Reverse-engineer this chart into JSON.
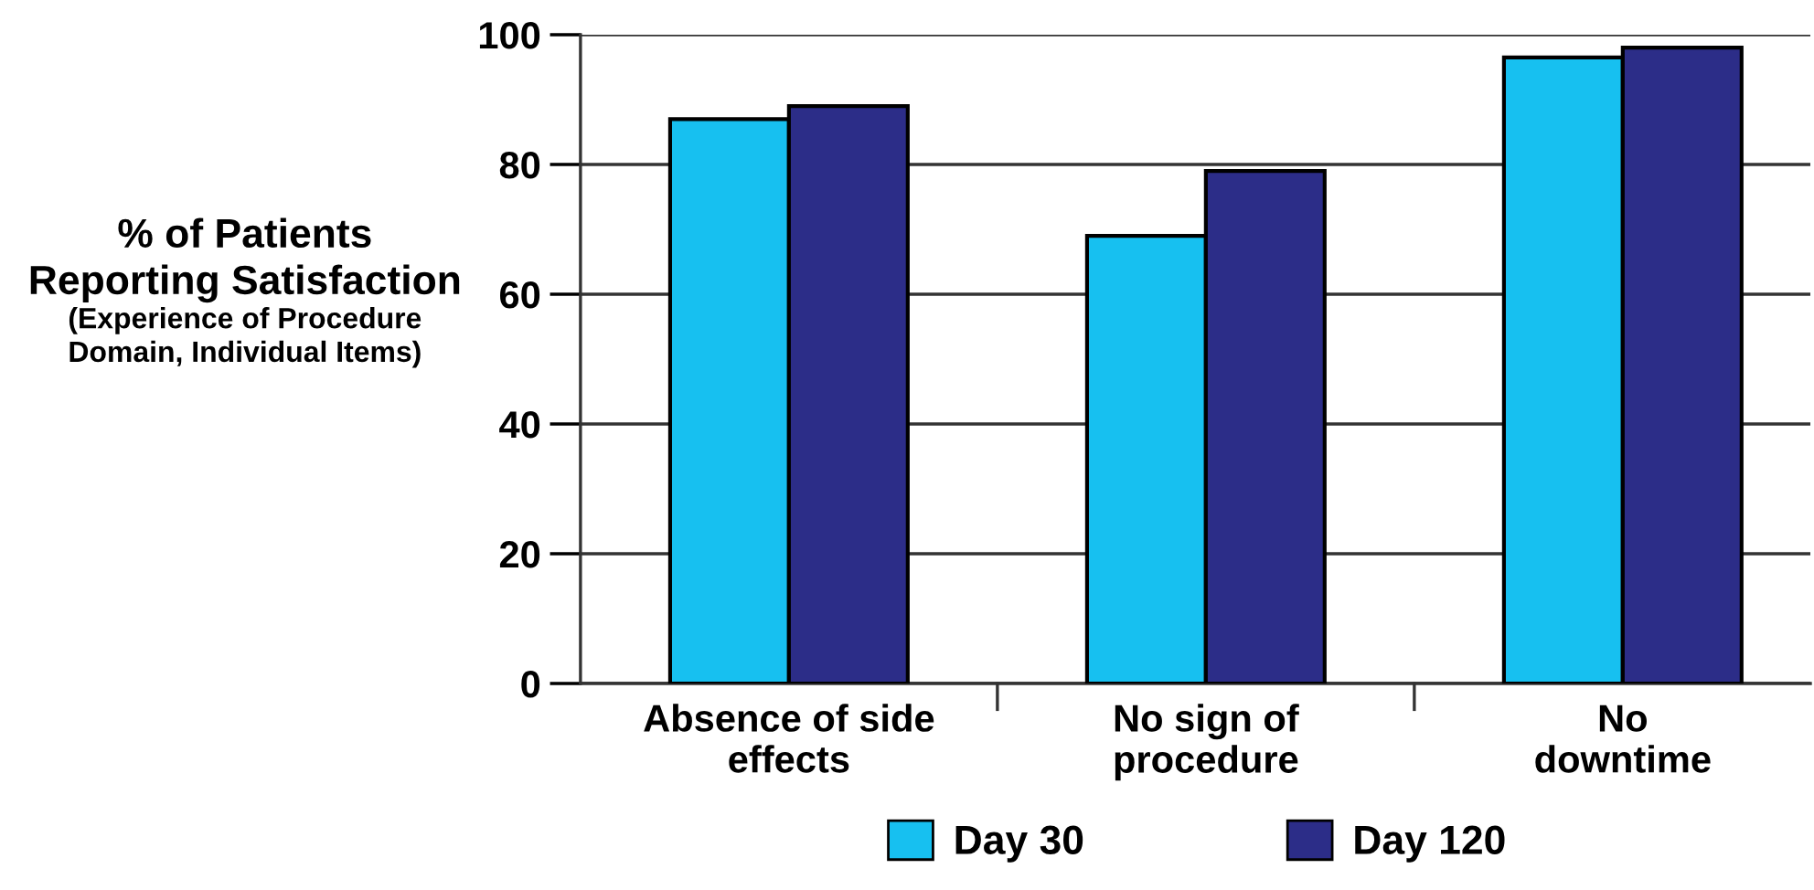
{
  "chart_data": {
    "type": "bar",
    "ylabel": "% of Patients\nReporting Satisfaction\n(Experience of Procedure\nDomain, Individual Items)",
    "categories": [
      "Absence of side\neffects",
      "No sign of\nprocedure",
      "No\ndowntime"
    ],
    "series": [
      {
        "name": "Day 30",
        "color": "#17c0f0",
        "values": [
          87,
          69,
          96.5
        ]
      },
      {
        "name": "Day 120",
        "color": "#2c2d88",
        "values": [
          89,
          79,
          98
        ]
      }
    ],
    "ylim": [
      0,
      100
    ],
    "yticks": [
      0,
      20,
      40,
      60,
      80,
      100
    ],
    "grid": "y",
    "legend": "bottom"
  }
}
